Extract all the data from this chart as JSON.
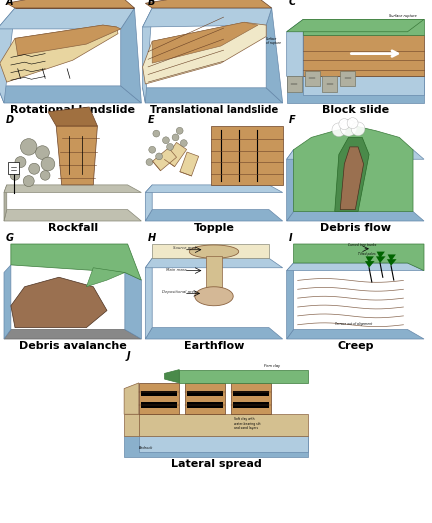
{
  "background_color": "#ffffff",
  "names": {
    "A": "Rotational landslide",
    "B": "Translational landslide",
    "C": "Block slide",
    "D": "Rockfall",
    "E": "Topple",
    "F": "Debris flow",
    "G": "Debris avalanche",
    "H": "Earthflow",
    "I": "Creep",
    "J": "Lateral spread"
  },
  "name_fontsize": 8,
  "label_fontsize": 7,
  "colors": {
    "blue_bg": "#b0cce0",
    "blue_side": "#8ab0cc",
    "brown_soil": "#c8965a",
    "brown_dark": "#a07040",
    "tan_mass": "#e8d5a0",
    "tan_light": "#f0e8c8",
    "green_veg": "#78b878",
    "green_dark": "#4a8a4a",
    "rock_gray": "#b0b0a0",
    "rock_dark": "#888878",
    "sand_color": "#d4c090",
    "debris_brown": "#9a7050",
    "white": "#ffffff",
    "black": "#111111",
    "gray_base": "#c0c0b0"
  }
}
